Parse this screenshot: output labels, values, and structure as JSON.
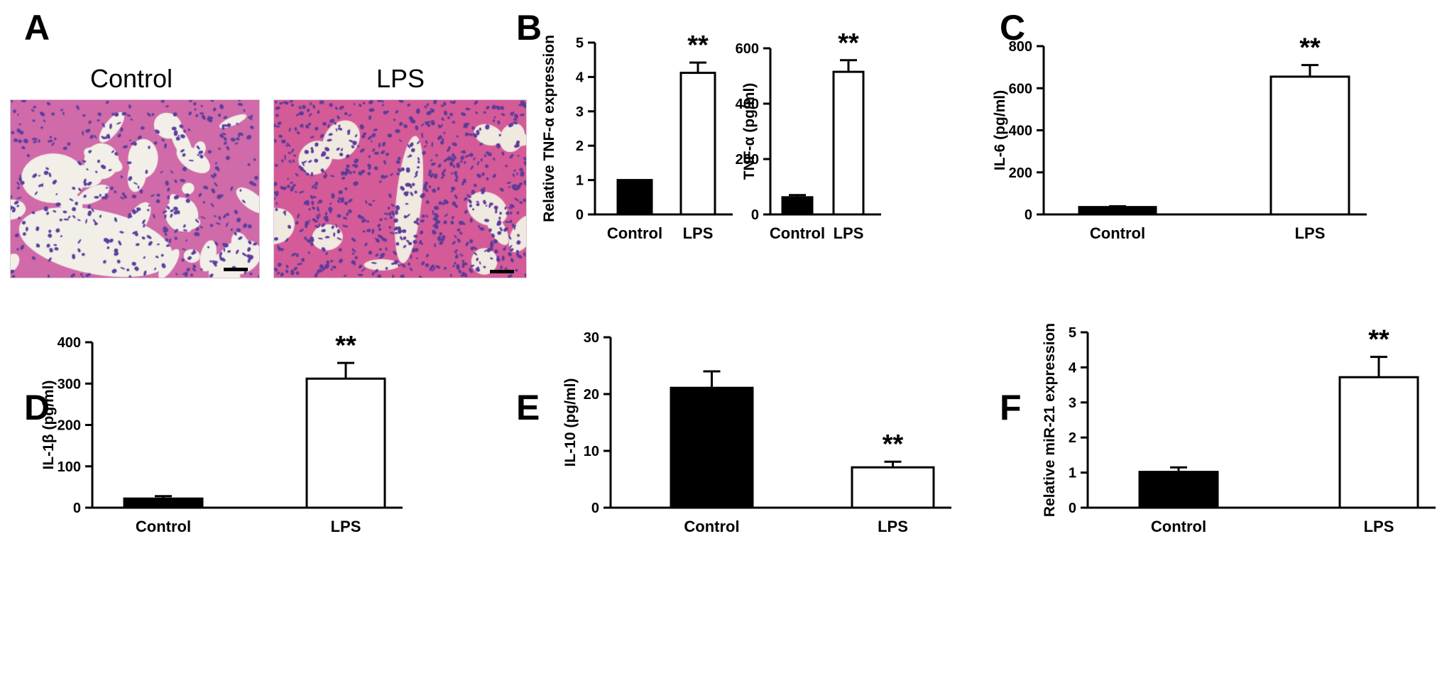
{
  "panels": {
    "a": {
      "letter": "A",
      "left_label": "Control",
      "right_label": "LPS"
    },
    "b": {
      "letter": "B"
    },
    "c": {
      "letter": "C"
    },
    "d": {
      "letter": "D"
    },
    "e": {
      "letter": "E"
    },
    "f": {
      "letter": "F"
    }
  },
  "micrographs": {
    "control": {
      "base": "#f3e4e6",
      "tissue": "#d06aa8",
      "nuclei": "#5a3f9e",
      "airspace": "#f2efe8",
      "tissue_fraction": 0.45
    },
    "lps": {
      "base": "#f1dbe3",
      "tissue": "#d55b98",
      "nuclei": "#5b3b9a",
      "airspace": "#efe9e0",
      "tissue_fraction": 0.8
    }
  },
  "chart_data": [
    {
      "id": "B1",
      "type": "bar",
      "categories": [
        "Control",
        "LPS"
      ],
      "values": [
        1.0,
        4.12
      ],
      "errors": [
        0,
        0.3
      ],
      "ylabel": "Relative TNF-α expression",
      "ylim": [
        0,
        5
      ],
      "yticks": [
        "0",
        "1",
        "2",
        "3",
        "4",
        "5"
      ],
      "fills": [
        "#000000",
        "#ffffff"
      ],
      "significance": [
        "",
        "**"
      ]
    },
    {
      "id": "B2",
      "type": "bar",
      "categories": [
        "Control",
        "LPS"
      ],
      "values": [
        62,
        515
      ],
      "errors": [
        8,
        42
      ],
      "ylabel": "TNF-α (pg/ml)",
      "ylim": [
        0,
        600
      ],
      "yticks": [
        "0",
        "200",
        "400",
        "600"
      ],
      "fills": [
        "#000000",
        "#ffffff"
      ],
      "significance": [
        "",
        "**"
      ]
    },
    {
      "id": "C",
      "type": "bar",
      "categories": [
        "Control",
        "LPS"
      ],
      "values": [
        35,
        655
      ],
      "errors": [
        4,
        55
      ],
      "ylabel": "IL-6 (pg/ml)",
      "ylim": [
        0,
        800
      ],
      "yticks": [
        "0",
        "200",
        "400",
        "600",
        "800"
      ],
      "fills": [
        "#000000",
        "#ffffff"
      ],
      "significance": [
        "",
        "**"
      ]
    },
    {
      "id": "D",
      "type": "bar",
      "categories": [
        "Control",
        "LPS"
      ],
      "values": [
        22,
        312
      ],
      "errors": [
        6,
        38
      ],
      "ylabel": "IL-1β (pg/ml)",
      "ylim": [
        0,
        400
      ],
      "yticks": [
        "0",
        "100",
        "200",
        "300",
        "400"
      ],
      "fills": [
        "#000000",
        "#ffffff"
      ],
      "significance": [
        "",
        "**"
      ]
    },
    {
      "id": "E",
      "type": "bar",
      "categories": [
        "Control",
        "LPS"
      ],
      "values": [
        21.1,
        7.1
      ],
      "errors": [
        2.9,
        1.0
      ],
      "ylabel": "IL-10 (pg/ml)",
      "ylim": [
        0,
        30
      ],
      "yticks": [
        "0",
        "10",
        "20",
        "30"
      ],
      "fills": [
        "#000000",
        "#ffffff"
      ],
      "significance": [
        "",
        "**"
      ]
    },
    {
      "id": "F",
      "type": "bar",
      "categories": [
        "Control",
        "LPS"
      ],
      "values": [
        1.02,
        3.72
      ],
      "errors": [
        0.13,
        0.58
      ],
      "ylabel": "Relative miR-21 expression",
      "ylim": [
        0,
        5
      ],
      "yticks": [
        "0",
        "1",
        "2",
        "3",
        "4",
        "5"
      ],
      "fills": [
        "#000000",
        "#ffffff"
      ],
      "significance": [
        "",
        "**"
      ]
    }
  ]
}
